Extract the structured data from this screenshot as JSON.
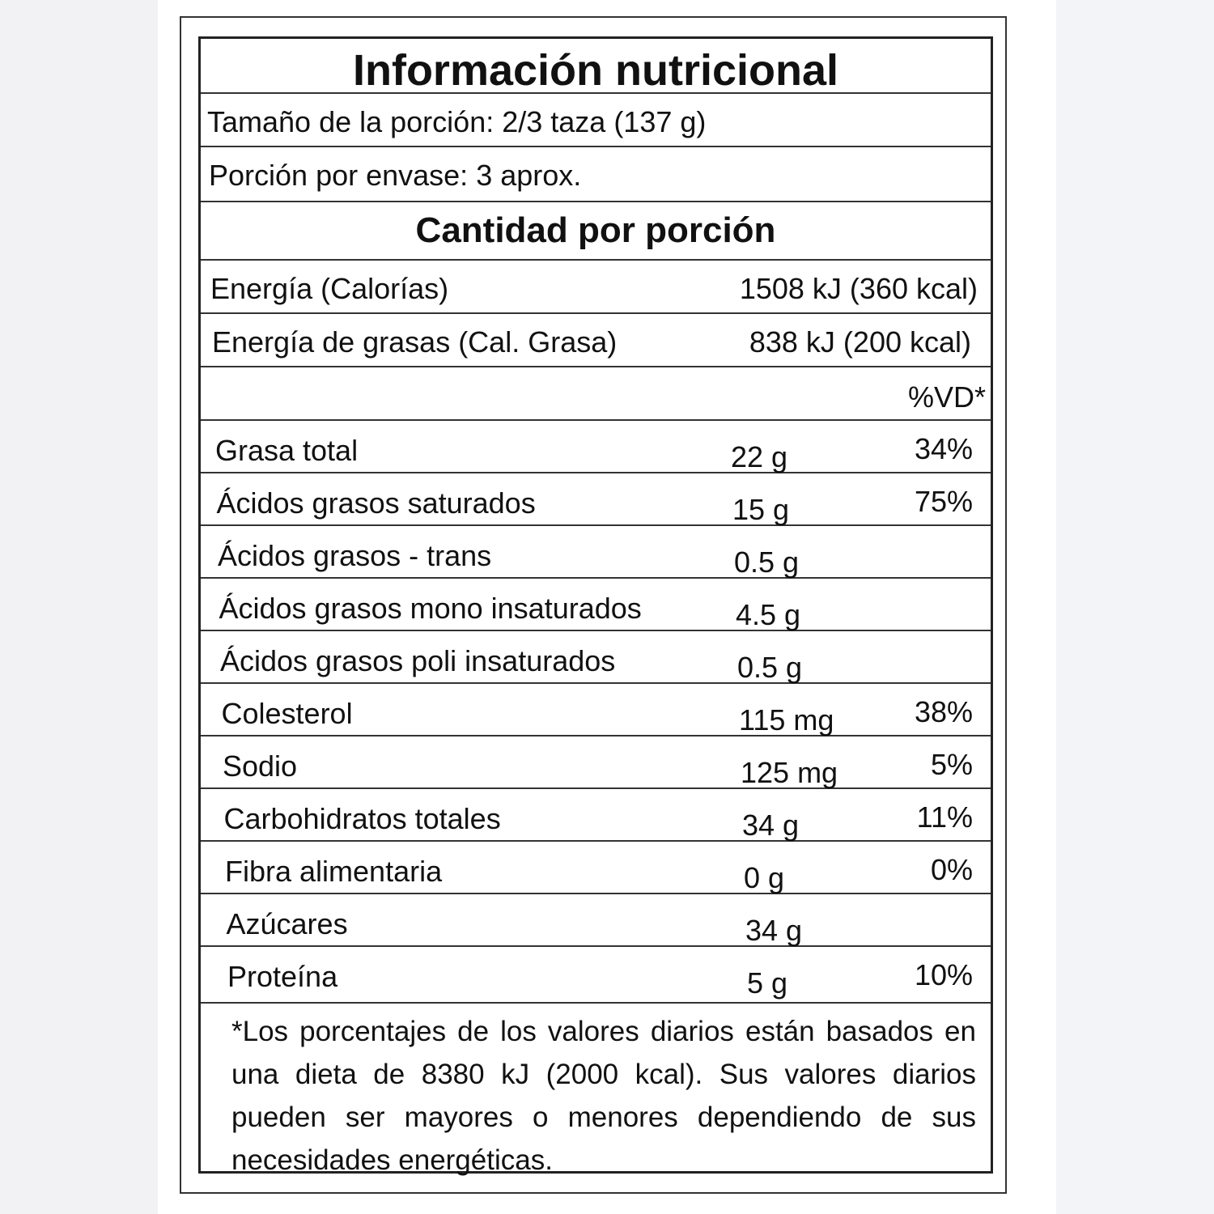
{
  "label": {
    "title": "Información nutricional",
    "serving_size": "Tamaño de la porción: 2/3 taza (137 g)",
    "servings_per_container": "Porción por envase: 3 aprox.",
    "amount_header": "Cantidad por porción",
    "energy": {
      "label": "Energía (Calorías)",
      "value": "1508 kJ (360 kcal)"
    },
    "energy_fat": {
      "label": "Energía de grasas (Cal. Grasa)",
      "value": "838 kJ (200 kcal)"
    },
    "dv_header": "%VD*",
    "nutrients": [
      {
        "label": "Grasa total",
        "amount": "22 g",
        "dv": "34%"
      },
      {
        "label": "Ácidos grasos saturados",
        "amount": "15 g",
        "dv": "75%"
      },
      {
        "label": "Ácidos grasos - trans",
        "amount": "0.5 g",
        "dv": ""
      },
      {
        "label": "Ácidos grasos mono insaturados",
        "amount": "4.5 g",
        "dv": ""
      },
      {
        "label": "Ácidos grasos poli insaturados",
        "amount": "0.5 g",
        "dv": ""
      },
      {
        "label": "Colesterol",
        "amount": "115 mg",
        "dv": "38%"
      },
      {
        "label": "Sodio",
        "amount": "125 mg",
        "dv": "5%"
      },
      {
        "label": "Carbohidratos totales",
        "amount": "34 g",
        "dv": "11%"
      },
      {
        "label": "Fibra alimentaria",
        "amount": "0 g",
        "dv": "0%"
      },
      {
        "label": "Azúcares",
        "amount": "34 g",
        "dv": ""
      },
      {
        "label": "Proteína",
        "amount": "5 g",
        "dv": "10%"
      }
    ],
    "footnote": "*Los porcentajes de los valores diarios están basados en una dieta de 8380 kJ (2000 kcal). Sus valores diarios pueden ser mayores o menores dependiendo de sus necesidades energéticas."
  }
}
